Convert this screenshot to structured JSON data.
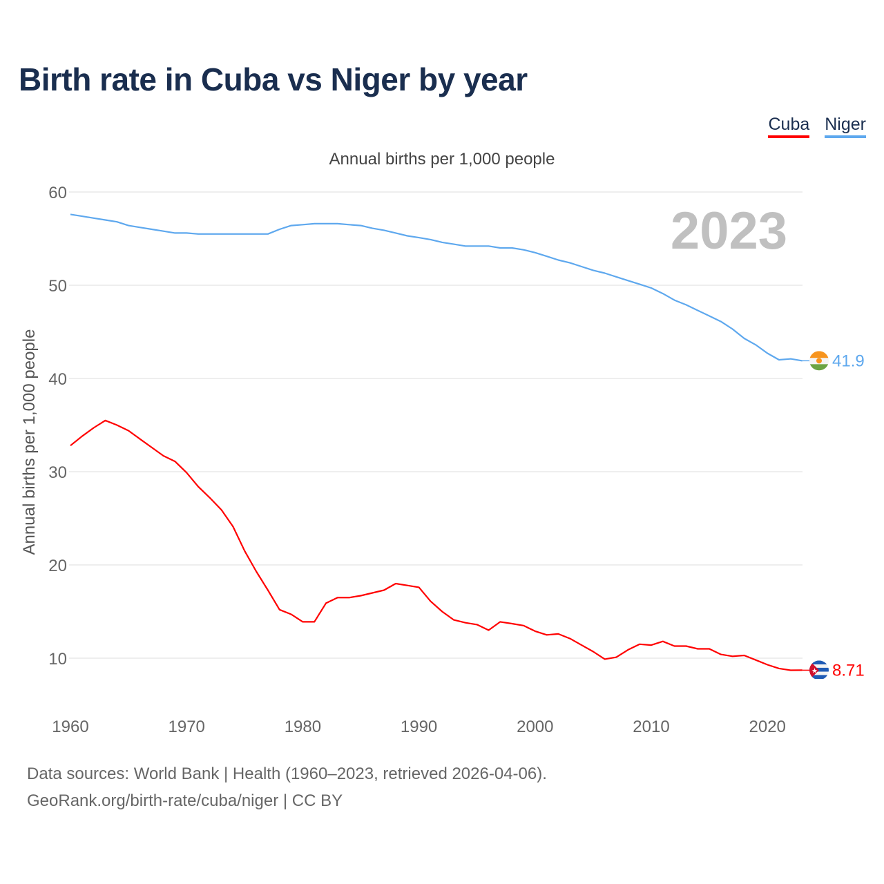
{
  "title": "Birth rate in Cuba vs Niger by year",
  "legend": [
    {
      "name": "Cuba",
      "color": "#ff0000"
    },
    {
      "name": "Niger",
      "color": "#5ea8ee"
    }
  ],
  "footer": {
    "line1": "Data sources: World Bank | Health (1960–2023, retrieved 2026-04-06).",
    "line2": "GeoRank.org/birth-rate/cuba/niger | CC BY"
  },
  "chart_data": {
    "type": "line",
    "title": "Birth rate in Cuba vs Niger by year",
    "subtitle": "Annual births per 1,000 people",
    "ylabel": "Annual births per 1,000 people",
    "xlabel": "",
    "year_label": "2023",
    "xlim": [
      1960,
      2023
    ],
    "ylim": [
      5,
      60
    ],
    "xticks": [
      1960,
      1970,
      1980,
      1990,
      2000,
      2010,
      2020
    ],
    "yticks": [
      10,
      20,
      30,
      40,
      50,
      60
    ],
    "grid": true,
    "legend_position": "top-right",
    "x_start": 1960,
    "series": [
      {
        "name": "Cuba",
        "color": "#ff0000",
        "end_label": "8.71",
        "flag": "cuba-flag-icon",
        "values": [
          32.8,
          33.8,
          34.7,
          35.5,
          35.0,
          34.4,
          33.5,
          32.6,
          31.7,
          31.1,
          29.9,
          28.4,
          27.2,
          25.9,
          24.1,
          21.5,
          19.3,
          17.3,
          15.2,
          14.7,
          13.9,
          13.9,
          15.9,
          16.5,
          16.5,
          16.7,
          17.0,
          17.3,
          18.0,
          17.8,
          17.6,
          16.1,
          15.0,
          14.1,
          13.8,
          13.6,
          13.0,
          13.9,
          13.7,
          13.5,
          12.9,
          12.5,
          12.6,
          12.1,
          11.4,
          10.7,
          9.9,
          10.1,
          10.9,
          11.5,
          11.4,
          11.8,
          11.3,
          11.3,
          11.0,
          11.0,
          10.4,
          10.2,
          10.3,
          9.8,
          9.3,
          8.9,
          8.7,
          8.71
        ]
      },
      {
        "name": "Niger",
        "color": "#5ea8ee",
        "end_label": "41.9",
        "flag": "niger-flag-icon",
        "values": [
          57.6,
          57.4,
          57.2,
          57.0,
          56.8,
          56.4,
          56.2,
          56.0,
          55.8,
          55.6,
          55.6,
          55.5,
          55.5,
          55.5,
          55.5,
          55.5,
          55.5,
          55.5,
          56.0,
          56.4,
          56.5,
          56.6,
          56.6,
          56.6,
          56.5,
          56.4,
          56.1,
          55.9,
          55.6,
          55.3,
          55.1,
          54.9,
          54.6,
          54.4,
          54.2,
          54.2,
          54.2,
          54.0,
          54.0,
          53.8,
          53.5,
          53.1,
          52.7,
          52.4,
          52.0,
          51.6,
          51.3,
          50.9,
          50.5,
          50.1,
          49.7,
          49.1,
          48.4,
          47.9,
          47.3,
          46.7,
          46.1,
          45.3,
          44.3,
          43.6,
          42.7,
          42.0,
          42.1,
          41.9
        ]
      }
    ]
  }
}
